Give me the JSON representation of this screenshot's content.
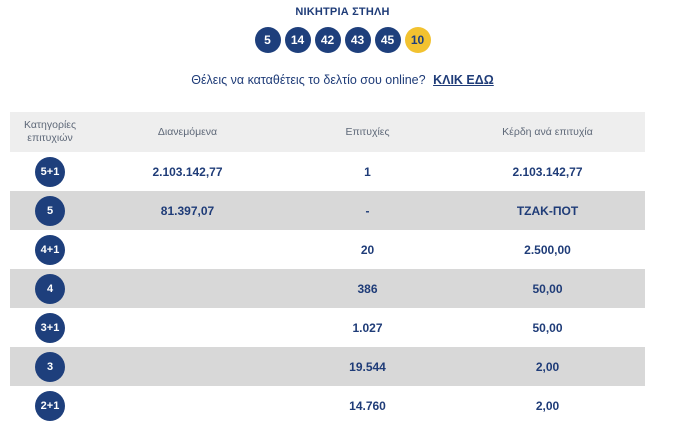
{
  "heading": "ΝΙΚΗΤΡΙΑ ΣΤΗΛΗ",
  "winning_numbers": [
    "5",
    "14",
    "42",
    "43",
    "45"
  ],
  "joker_number": "10",
  "colors": {
    "navy": "#1e3f7c",
    "joker": "#f2c230",
    "row_gray": "#d8d8d8",
    "header_gray": "#eeeeee"
  },
  "promo": {
    "text": "Θέλεις να καταθέτεις το δελτίο σου online?",
    "link": "ΚΛΙΚ ΕΔΩ"
  },
  "table": {
    "headers": {
      "category_line1": "Κατηγορίες",
      "category_line2": "επιτυχιών",
      "distributed": "Διανεμόμενα",
      "winners": "Επιτυχίες",
      "prize_per_winner": "Κέρδη ανά επιτυχία"
    },
    "rows": [
      {
        "category": "5+1",
        "distributed": "2.103.142,77",
        "winners": "1",
        "prize": "2.103.142,77"
      },
      {
        "category": "5",
        "distributed": "81.397,07",
        "winners": "-",
        "prize": "ΤΖΑΚ-ΠΟΤ"
      },
      {
        "category": "4+1",
        "distributed": "",
        "winners": "20",
        "prize": "2.500,00"
      },
      {
        "category": "4",
        "distributed": "",
        "winners": "386",
        "prize": "50,00"
      },
      {
        "category": "3+1",
        "distributed": "",
        "winners": "1.027",
        "prize": "50,00"
      },
      {
        "category": "3",
        "distributed": "",
        "winners": "19.544",
        "prize": "2,00"
      },
      {
        "category": "2+1",
        "distributed": "",
        "winners": "14.760",
        "prize": "2,00"
      }
    ]
  }
}
